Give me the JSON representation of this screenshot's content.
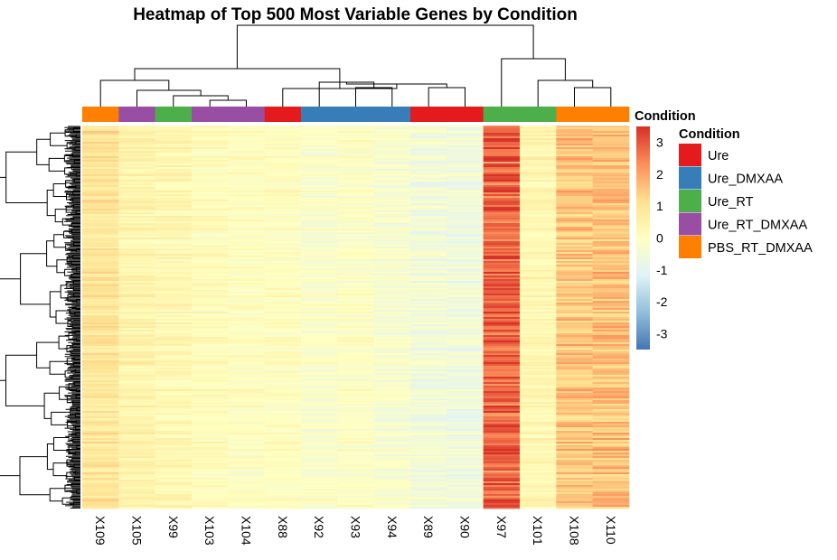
{
  "chart_data": {
    "type": "heatmap",
    "title": "Heatmap of Top 500 Most Variable Genes by Condition",
    "columns": [
      "X109",
      "X105",
      "X99",
      "X103",
      "X104",
      "X88",
      "X92",
      "X93",
      "X94",
      "X89",
      "X90",
      "X97",
      "X101",
      "X108",
      "X110"
    ],
    "column_conditions": [
      "PBS_RT_DMXAA",
      "Ure_RT_DMXAA",
      "Ure_RT",
      "Ure_RT_DMXAA",
      "Ure_RT_DMXAA",
      "Ure",
      "Ure_DMXAA",
      "Ure_DMXAA",
      "Ure_DMXAA",
      "Ure",
      "Ure",
      "Ure_RT",
      "Ure_RT",
      "PBS_RT_DMXAA",
      "PBS_RT_DMXAA"
    ],
    "column_mean_z": [
      0.9,
      0.4,
      0.3,
      0.1,
      0.0,
      0.0,
      -0.2,
      -0.1,
      -0.3,
      -0.5,
      -0.6,
      2.8,
      0.3,
      1.5,
      1.6
    ],
    "n_rows": 500,
    "color_scale": {
      "min": -3.5,
      "max": 3.5,
      "ticks": [
        3,
        2,
        1,
        0,
        -1,
        -2,
        -3
      ],
      "colors": [
        "#4575b4",
        "#91bfdb",
        "#e0f3f8",
        "#ffffbf",
        "#fee090",
        "#fc8d59",
        "#d73027"
      ]
    },
    "legends": {
      "condition_title": "Condition",
      "annotation_title": "Condition",
      "conditions": [
        {
          "name": "Ure",
          "color": "#e41a1c"
        },
        {
          "name": "Ure_DMXAA",
          "color": "#377eb8"
        },
        {
          "name": "Ure_RT",
          "color": "#4daf4a"
        },
        {
          "name": "Ure_RT_DMXAA",
          "color": "#984ea3"
        },
        {
          "name": "PBS_RT_DMXAA",
          "color": "#ff7f00"
        }
      ]
    }
  }
}
